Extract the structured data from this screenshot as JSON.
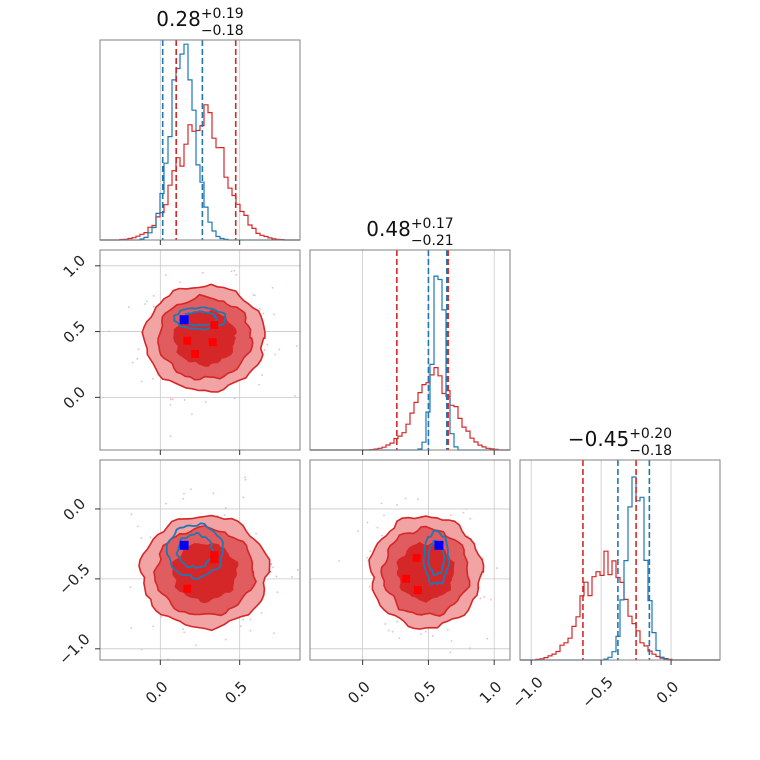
{
  "colors": {
    "primary": "#d62728",
    "secondary": "#1f77b4",
    "fill_light": "#f2a3a4",
    "fill_mid": "#e05c5e",
    "fill_dark": "#d62728",
    "marker_main": "#0000ff",
    "marker_alt": "#ff0000"
  },
  "chart_data": {
    "type": "corner",
    "parameters": [
      {
        "index": 0,
        "title_median": "0.28",
        "title_plus": "+0.19",
        "title_minus": "−0.18",
        "range": [
          -0.38,
          0.88
        ],
        "ticks": [
          0.0,
          0.5
        ],
        "tick_labels": [
          "0.0",
          "0.5"
        ],
        "primary_quantiles": [
          0.1,
          0.475
        ],
        "secondary_quantiles": [
          0.015,
          0.265
        ],
        "primary_peak": 0.26,
        "primary_width": 0.15,
        "primary_height": 0.6,
        "secondary_peak": 0.14,
        "secondary_width": 0.08,
        "secondary_height": 0.92
      },
      {
        "index": 1,
        "title_median": "0.48",
        "title_plus": "+0.17",
        "title_minus": "−0.21",
        "range": [
          -0.4,
          1.12
        ],
        "ticks": [
          0.0,
          0.5,
          1.0
        ],
        "tick_labels": [
          "0.0",
          "0.5",
          "1.0"
        ],
        "primary_quantiles": [
          0.26,
          0.65
        ],
        "secondary_quantiles": [
          0.5,
          0.64
        ],
        "primary_peak": 0.55,
        "primary_width": 0.15,
        "primary_height": 0.36,
        "secondary_peak": 0.58,
        "secondary_width": 0.045,
        "secondary_height": 0.92
      },
      {
        "index": 2,
        "title_median": "−0.45",
        "title_plus": "+0.20",
        "title_minus": "−0.18",
        "range": [
          -1.08,
          0.35
        ],
        "ticks": [
          -1.0,
          -0.5,
          0.0
        ],
        "tick_labels": [
          "−1.0",
          "−0.5",
          "0.0"
        ],
        "primary_quantiles": [
          -0.63,
          -0.25
        ],
        "secondary_quantiles": [
          -0.38,
          -0.155
        ],
        "primary_peak": -0.48,
        "primary_width": 0.15,
        "primary_height": 0.48,
        "secondary_peak": -0.25,
        "secondary_width": 0.065,
        "secondary_height": 0.92
      }
    ],
    "pairs": [
      {
        "x": 0,
        "y": 1,
        "center": [
          0.28,
          0.45
        ],
        "radius": [
          0.19,
          0.2
        ],
        "secondary_center": [
          0.25,
          0.6
        ],
        "secondary_radius": [
          0.12,
          0.06
        ],
        "marker_main": [
          0.15,
          0.59
        ],
        "markers_alt": [
          [
            0.17,
            0.43
          ],
          [
            0.22,
            0.33
          ],
          [
            0.33,
            0.42
          ],
          [
            0.34,
            0.55
          ]
        ]
      },
      {
        "x": 0,
        "y": 2,
        "center": [
          0.28,
          -0.45
        ],
        "radius": [
          0.2,
          0.2
        ],
        "secondary_center": [
          0.22,
          -0.3
        ],
        "secondary_radius": [
          0.13,
          0.14
        ],
        "marker_main": [
          0.15,
          -0.26
        ],
        "markers_alt": [
          [
            0.17,
            -0.57
          ],
          [
            0.34,
            -0.33
          ],
          [
            0.34,
            -0.36
          ]
        ]
      },
      {
        "x": 1,
        "y": 2,
        "center": [
          0.48,
          -0.45
        ],
        "radius": [
          0.21,
          0.2
        ],
        "secondary_center": [
          0.56,
          -0.35
        ],
        "secondary_radius": [
          0.07,
          0.14
        ],
        "marker_main": [
          0.58,
          -0.26
        ],
        "markers_alt": [
          [
            0.33,
            -0.5
          ],
          [
            0.42,
            -0.58
          ],
          [
            0.41,
            -0.35
          ]
        ]
      }
    ],
    "extra_ticks": {
      "y_row1": {
        "ticks": [
          0.0,
          0.5,
          1.0
        ],
        "tick_labels": [
          "0.0",
          "0.5",
          "1.0"
        ],
        "range": [
          -0.4,
          1.12
        ]
      }
    },
    "grid": true,
    "legend": "none"
  }
}
